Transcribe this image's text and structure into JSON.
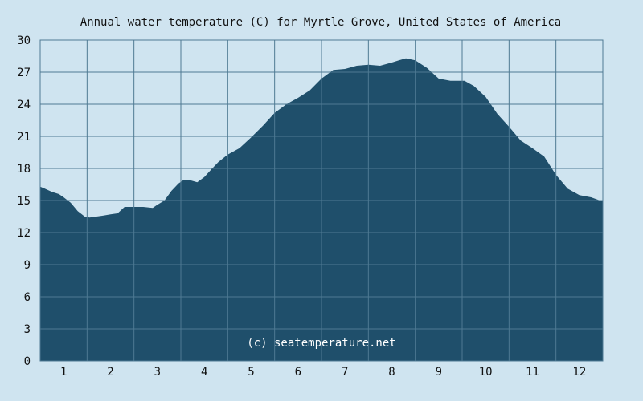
{
  "chart_data": {
    "type": "area",
    "title": "Annual water temperature (C) for Myrtle Grove, United States of America",
    "xlabel": "",
    "ylabel": "",
    "x_ticks": [
      "1",
      "2",
      "3",
      "4",
      "5",
      "6",
      "7",
      "8",
      "9",
      "10",
      "11",
      "12"
    ],
    "y_ticks": [
      0,
      3,
      6,
      9,
      12,
      15,
      18,
      21,
      24,
      27,
      30
    ],
    "ylim": [
      0,
      30
    ],
    "xlim": [
      0.5,
      12.5
    ],
    "grid": true,
    "legend": "none",
    "watermark": "(c) seatemperature.net",
    "colors": {
      "fill": "#1f4f6b",
      "background": "#cfe4f0",
      "grid": "#4f7a93"
    },
    "series": [
      {
        "x": [
          0.5,
          0.6,
          0.75,
          0.9,
          1.0,
          1.15,
          1.3,
          1.45,
          1.55,
          1.7,
          1.85,
          2.0,
          2.15,
          2.3,
          2.5,
          2.7,
          2.9,
          3.0,
          3.15,
          3.3,
          3.45,
          3.55,
          3.7,
          3.85,
          4.0,
          4.15,
          4.3,
          4.5,
          4.75,
          5.0,
          5.25,
          5.5,
          5.75,
          6.0,
          6.25,
          6.5,
          6.75,
          7.0,
          7.25,
          7.5,
          7.75,
          8.0,
          8.15,
          8.3,
          8.5,
          8.75,
          9.0,
          9.25,
          9.4,
          9.55,
          9.75,
          10.0,
          10.25,
          10.5,
          10.75,
          11.0,
          11.25,
          11.5,
          11.75,
          12.0,
          12.25,
          12.5
        ],
        "y": [
          16.3,
          16.1,
          15.8,
          15.6,
          15.3,
          14.8,
          14.0,
          13.5,
          13.4,
          13.5,
          13.6,
          13.7,
          13.8,
          14.4,
          14.4,
          14.4,
          14.3,
          14.6,
          15.0,
          15.9,
          16.6,
          16.9,
          16.9,
          16.7,
          17.2,
          17.9,
          18.6,
          19.3,
          19.9,
          20.9,
          22.0,
          23.2,
          24.0,
          24.6,
          25.3,
          26.4,
          27.2,
          27.3,
          27.6,
          27.7,
          27.6,
          27.9,
          28.1,
          28.3,
          28.1,
          27.4,
          26.4,
          26.2,
          26.2,
          26.2,
          25.7,
          24.7,
          23.1,
          21.9,
          20.6,
          19.9,
          19.1,
          17.4,
          16.1,
          15.5,
          15.3,
          14.9
        ]
      }
    ]
  }
}
